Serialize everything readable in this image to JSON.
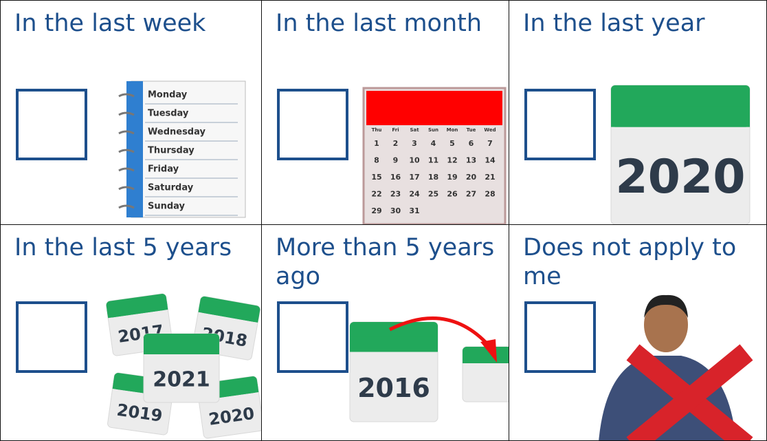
{
  "cells": [
    {
      "label": "In the last week",
      "image": {
        "type": "weekdays",
        "days": [
          "Monday",
          "Tuesday",
          "Wednesday",
          "Thursday",
          "Friday",
          "Saturday",
          "Sunday"
        ]
      }
    },
    {
      "label": "In the last month",
      "image": {
        "type": "month",
        "weekdays": [
          "Thu",
          "Fri",
          "Sat",
          "Sun",
          "Mon",
          "Tue",
          "Wed"
        ],
        "dates": [
          1,
          2,
          3,
          4,
          5,
          6,
          7,
          8,
          9,
          10,
          11,
          12,
          13,
          14,
          15,
          16,
          17,
          18,
          19,
          20,
          21,
          22,
          23,
          24,
          25,
          26,
          27,
          28,
          29,
          30,
          31
        ]
      }
    },
    {
      "label": "In the last year",
      "image": {
        "type": "year",
        "year": "2020"
      }
    },
    {
      "label": "In the last 5 years",
      "image": {
        "type": "years",
        "years": [
          "2017",
          "2018",
          "2019",
          "2020",
          "2021"
        ]
      }
    },
    {
      "label": "More than 5 years ago",
      "image": {
        "type": "past",
        "year": "2016"
      }
    },
    {
      "label": "Does not apply to me",
      "image": {
        "type": "not-me"
      }
    }
  ]
}
